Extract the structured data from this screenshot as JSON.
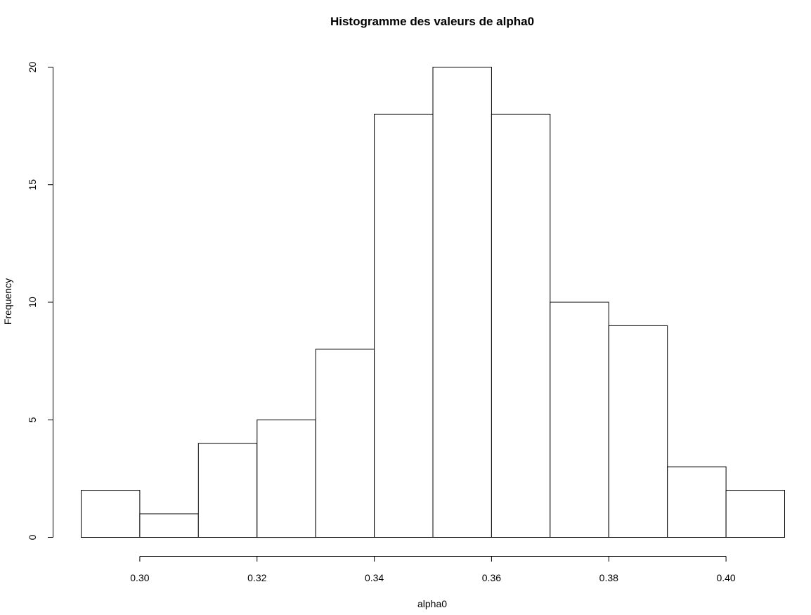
{
  "chart_data": {
    "type": "bar",
    "title": "Histogramme des valeurs de alpha0",
    "xlabel": "alpha0",
    "ylabel": "Frequency",
    "bin_edges": [
      0.29,
      0.3,
      0.31,
      0.32,
      0.33,
      0.34,
      0.35,
      0.36,
      0.37,
      0.38,
      0.39,
      0.4,
      0.41
    ],
    "values": [
      2,
      1,
      4,
      5,
      8,
      18,
      20,
      18,
      10,
      9,
      3,
      2
    ],
    "xlim": [
      0.29,
      0.41
    ],
    "ylim": [
      0,
      20
    ],
    "x_ticks": [
      "0.30",
      "0.32",
      "0.34",
      "0.36",
      "0.38",
      "0.40"
    ],
    "y_ticks": [
      "0",
      "5",
      "10",
      "15",
      "20"
    ],
    "grid": false,
    "legend": "none"
  }
}
